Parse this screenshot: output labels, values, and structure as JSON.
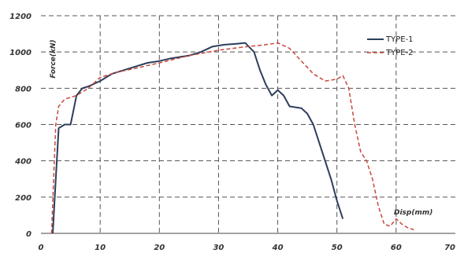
{
  "chart_data": {
    "type": "line",
    "ylabel": "Force(kN)",
    "xlabel": "Disp(mm)",
    "xlim": [
      0,
      70
    ],
    "ylim": [
      0,
      1200
    ],
    "xticks": [
      0,
      10,
      20,
      30,
      40,
      50,
      60,
      70
    ],
    "xtick_labels": [
      "0",
      "10",
      "20",
      "30",
      "40",
      "50",
      "60",
      "70"
    ],
    "yticks": [
      0,
      200,
      400,
      600,
      800,
      1000,
      1200
    ],
    "grid": true,
    "legend_position": "top-right",
    "series": [
      {
        "name": "TYPE-1",
        "color": "#2c3e5c",
        "dash": "solid",
        "points": [
          [
            2.0,
            0
          ],
          [
            2.5,
            300
          ],
          [
            3.0,
            580
          ],
          [
            4.0,
            600
          ],
          [
            5.0,
            600
          ],
          [
            6.0,
            760
          ],
          [
            7.0,
            800
          ],
          [
            8.0,
            810
          ],
          [
            10.0,
            840
          ],
          [
            12.0,
            880
          ],
          [
            15.0,
            910
          ],
          [
            18.0,
            940
          ],
          [
            20.0,
            950
          ],
          [
            22.0,
            965
          ],
          [
            25.0,
            980
          ],
          [
            27.0,
            1000
          ],
          [
            29.0,
            1030
          ],
          [
            31.0,
            1040
          ],
          [
            33.0,
            1045
          ],
          [
            34.5,
            1050
          ],
          [
            36.0,
            1000
          ],
          [
            37.0,
            900
          ],
          [
            38.0,
            820
          ],
          [
            39.0,
            760
          ],
          [
            40.0,
            790
          ],
          [
            41.0,
            760
          ],
          [
            42.0,
            700
          ],
          [
            44.0,
            690
          ],
          [
            45.0,
            660
          ],
          [
            46.0,
            600
          ],
          [
            47.0,
            500
          ],
          [
            48.0,
            400
          ],
          [
            49.0,
            300
          ],
          [
            50.0,
            180
          ],
          [
            51.0,
            80
          ]
        ]
      },
      {
        "name": "TYPE-2",
        "color": "#c9483c",
        "dash": "dashed",
        "points": [
          [
            1.8,
            0
          ],
          [
            2.2,
            350
          ],
          [
            2.5,
            600
          ],
          [
            3.0,
            700
          ],
          [
            4.0,
            740
          ],
          [
            6.0,
            760
          ],
          [
            8.0,
            800
          ],
          [
            10.0,
            860
          ],
          [
            13.0,
            890
          ],
          [
            16.0,
            910
          ],
          [
            20.0,
            940
          ],
          [
            25.0,
            980
          ],
          [
            30.0,
            1010
          ],
          [
            35.0,
            1030
          ],
          [
            38.0,
            1040
          ],
          [
            40.0,
            1050
          ],
          [
            42.0,
            1020
          ],
          [
            44.0,
            950
          ],
          [
            46.0,
            880
          ],
          [
            48.0,
            840
          ],
          [
            50.0,
            850
          ],
          [
            51.0,
            870
          ],
          [
            52.0,
            800
          ],
          [
            53.0,
            600
          ],
          [
            54.0,
            450
          ],
          [
            55.0,
            400
          ],
          [
            56.0,
            300
          ],
          [
            57.0,
            150
          ],
          [
            58.0,
            50
          ],
          [
            59.0,
            40
          ],
          [
            60.0,
            80
          ],
          [
            61.0,
            50
          ],
          [
            62.0,
            30
          ],
          [
            63.0,
            20
          ]
        ]
      }
    ]
  }
}
